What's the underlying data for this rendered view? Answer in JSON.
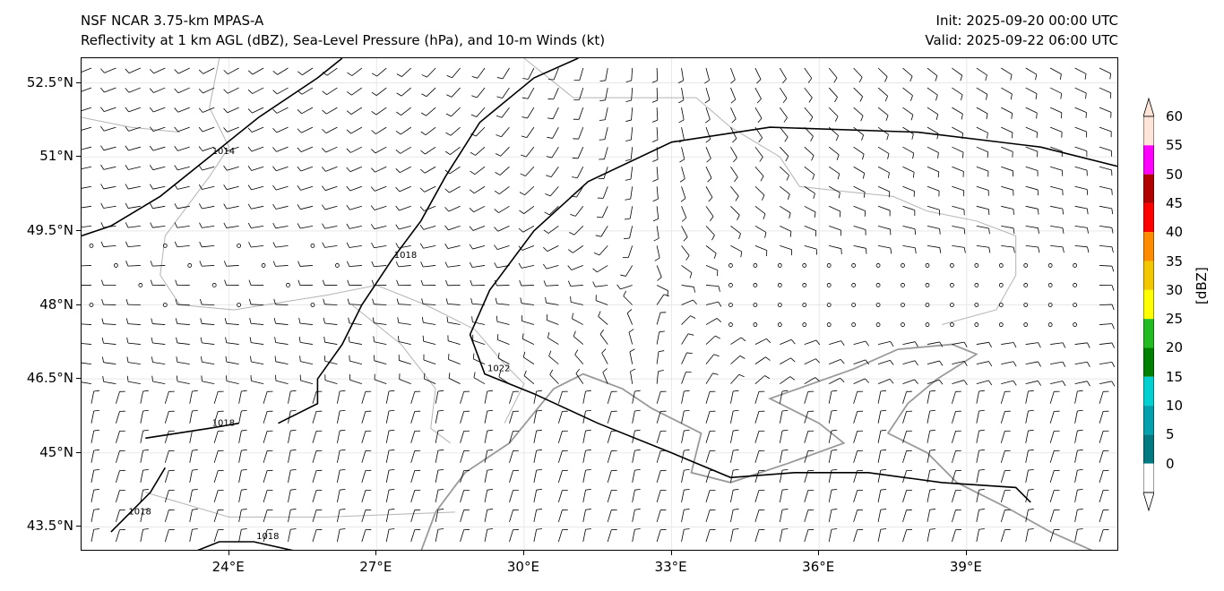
{
  "header": {
    "left_line1": "NSF NCAR 3.75-km MPAS-A",
    "left_line2": "Reflectivity at 1 km AGL (dBZ), Sea-Level Pressure (hPa), and 10-m Winds (kt)",
    "right_line1": "Init: 2025-09-20 00:00 UTC",
    "right_line2": "Valid: 2025-09-22 06:00 UTC"
  },
  "map": {
    "lat_labels": [
      "52.5°N",
      "51°N",
      "49.5°N",
      "48°N",
      "46.5°N",
      "45°N",
      "43.5°N"
    ],
    "lat_values": [
      52.5,
      51,
      49.5,
      48,
      46.5,
      45,
      43.5
    ],
    "lon_labels": [
      "24°E",
      "27°E",
      "30°E",
      "33°E",
      "36°E",
      "39°E"
    ],
    "lon_values": [
      24,
      27,
      30,
      33,
      36,
      39
    ],
    "extent": {
      "lon_min": 21,
      "lon_max": 42.1,
      "lat_min": 43.0,
      "lat_max": 53.0
    },
    "isobars": [
      {
        "label": "1014",
        "points": [
          [
            21,
            49.4
          ],
          [
            21.6,
            49.6
          ],
          [
            22.6,
            50.2
          ],
          [
            23.6,
            51.0
          ],
          [
            24.6,
            51.8
          ],
          [
            25.8,
            52.6
          ],
          [
            26.3,
            53.0
          ]
        ]
      },
      {
        "label": "1018",
        "points": [
          [
            31.1,
            53.0
          ],
          [
            30.2,
            52.6
          ],
          [
            29.1,
            51.7
          ],
          [
            28.4,
            50.6
          ],
          [
            27.9,
            49.7
          ],
          [
            27.3,
            48.9
          ],
          [
            26.7,
            48.0
          ],
          [
            26.3,
            47.2
          ],
          [
            25.8,
            46.5
          ],
          [
            25.8,
            46.0
          ],
          [
            25.0,
            45.6
          ]
        ]
      },
      {
        "label": "1018",
        "points": [
          [
            24.2,
            45.6
          ],
          [
            23.6,
            45.5
          ],
          [
            22.3,
            45.3
          ]
        ]
      },
      {
        "label": "1018",
        "points": [
          [
            22.7,
            44.7
          ],
          [
            22.4,
            44.2
          ],
          [
            21.9,
            43.7
          ],
          [
            21.6,
            43.4
          ]
        ]
      },
      {
        "label": "1018",
        "points": [
          [
            23.3,
            43.0
          ],
          [
            23.8,
            43.2
          ],
          [
            24.5,
            43.2
          ],
          [
            25.4,
            43.0
          ]
        ]
      },
      {
        "label": "1022",
        "points": [
          [
            42.1,
            50.8
          ],
          [
            40.5,
            51.2
          ],
          [
            38.0,
            51.5
          ],
          [
            35.0,
            51.6
          ],
          [
            33.0,
            51.3
          ],
          [
            31.3,
            50.5
          ],
          [
            30.2,
            49.5
          ],
          [
            29.3,
            48.3
          ],
          [
            28.9,
            47.4
          ],
          [
            29.2,
            46.6
          ],
          [
            30.2,
            46.2
          ],
          [
            31.5,
            45.6
          ],
          [
            33.0,
            45.0
          ],
          [
            34.2,
            44.5
          ],
          [
            35.5,
            44.6
          ],
          [
            37.0,
            44.6
          ],
          [
            38.5,
            44.4
          ],
          [
            40.0,
            44.3
          ],
          [
            40.3,
            44.0
          ]
        ]
      }
    ],
    "coastline_color": "#9a9a9a",
    "border_color": "#b4b4b4",
    "isobar_color": "#000000",
    "barb_color": "#000000"
  },
  "colorbar": {
    "title": "[dBZ]",
    "labels": [
      "60",
      "55",
      "50",
      "45",
      "40",
      "35",
      "30",
      "25",
      "20",
      "15",
      "10",
      "5",
      "0"
    ],
    "values": [
      0,
      5,
      10,
      15,
      20,
      25,
      30,
      35,
      40,
      45,
      50,
      55,
      60
    ],
    "colors": [
      "#ffffff",
      "#007a80",
      "#00a0ad",
      "#00d0d0",
      "#008000",
      "#22bb22",
      "#ffff00",
      "#f2c700",
      "#ff8c00",
      "#ff0000",
      "#b00000",
      "#ff00ff",
      "#ffe4d8"
    ],
    "max_extension_color": "#ffe4d8",
    "min_extension_color": "#ffffff"
  }
}
